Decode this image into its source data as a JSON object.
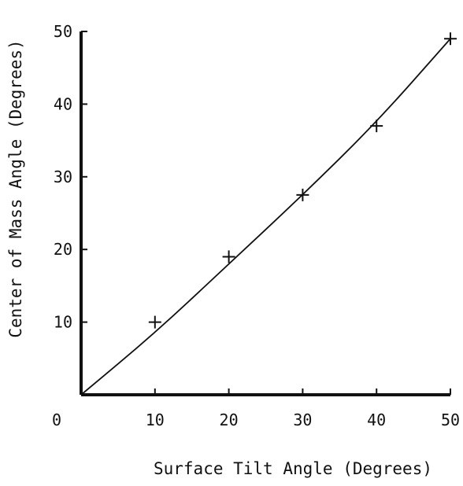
{
  "chart_data": {
    "type": "scatter",
    "title": "",
    "xlabel": "Surface Tilt Angle (Degrees)",
    "ylabel": "Center of Mass Angle (Degrees)",
    "xlim": [
      0,
      50
    ],
    "ylim": [
      0,
      50
    ],
    "origin_label": "0",
    "x_ticks": [
      10,
      20,
      30,
      40,
      50
    ],
    "y_ticks": [
      10,
      20,
      30,
      40,
      50
    ],
    "x_tick_labels": [
      "10",
      "20",
      "30",
      "40",
      "50"
    ],
    "y_tick_labels": [
      "10",
      "20",
      "30",
      "40",
      "50"
    ],
    "grid": false,
    "legend": "none",
    "series": [
      {
        "marker": "plus",
        "x": [
          10,
          20,
          30,
          40,
          50
        ],
        "y": [
          10,
          19,
          27.5,
          37,
          49
        ]
      }
    ],
    "fit_line": {
      "x": [
        0,
        10,
        20,
        30,
        40,
        50
      ],
      "y": [
        0,
        8.5,
        18,
        27.5,
        37.5,
        49
      ]
    }
  }
}
